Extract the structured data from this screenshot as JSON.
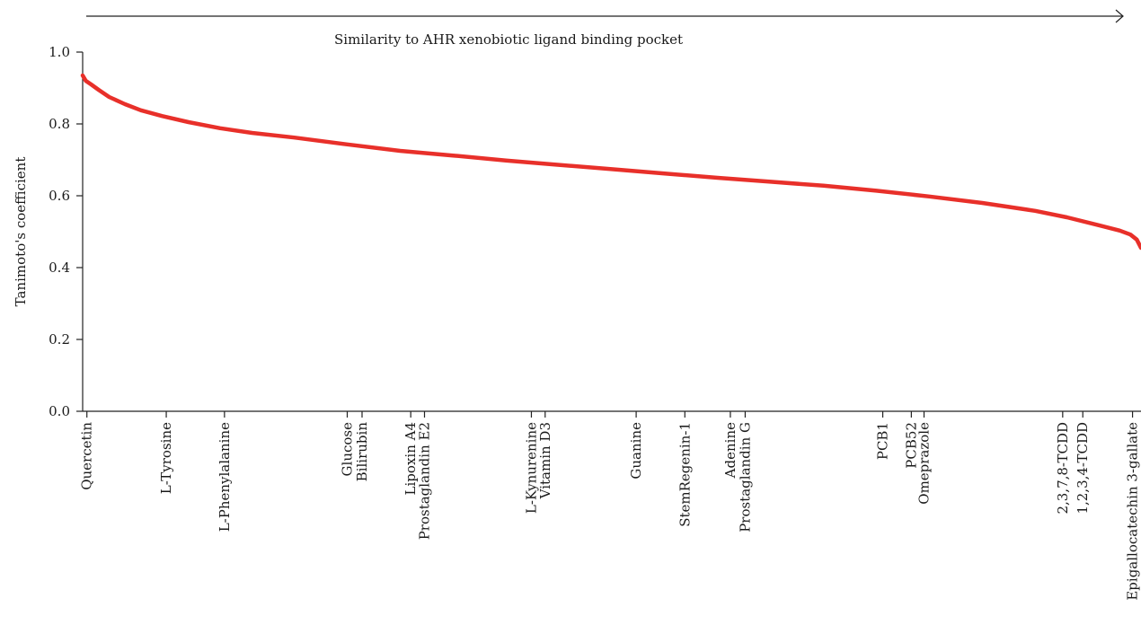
{
  "chart_data": {
    "type": "line",
    "title": "",
    "xlabel": "",
    "ylabel": "Tanimoto's coefficient",
    "ylim": [
      0.0,
      1.0
    ],
    "xlim": [
      0,
      1
    ],
    "yticks": [
      0.0,
      0.2,
      0.4,
      0.6,
      0.8,
      1.0
    ],
    "ytick_labels": [
      "0.0",
      "0.2",
      "0.4",
      "0.6",
      "0.8",
      "1.0"
    ],
    "grid": false,
    "legend": "none",
    "annotation": {
      "text": "Similarity to AHR xenobiotic ligand binding pocket",
      "arrow": "right"
    },
    "series": [
      {
        "color": "#e8302a",
        "x": [
          0.0,
          0.003,
          0.008,
          0.015,
          0.025,
          0.04,
          0.055,
          0.075,
          0.1,
          0.13,
          0.16,
          0.2,
          0.25,
          0.3,
          0.35,
          0.4,
          0.45,
          0.5,
          0.55,
          0.6,
          0.65,
          0.7,
          0.75,
          0.8,
          0.85,
          0.9,
          0.93,
          0.96,
          0.98,
          0.99,
          0.996,
          1.0
        ],
        "values": [
          0.935,
          0.92,
          0.91,
          0.895,
          0.875,
          0.855,
          0.838,
          0.822,
          0.805,
          0.788,
          0.775,
          0.762,
          0.743,
          0.725,
          0.712,
          0.698,
          0.686,
          0.674,
          0.662,
          0.65,
          0.639,
          0.628,
          0.614,
          0.598,
          0.58,
          0.558,
          0.54,
          0.518,
          0.503,
          0.492,
          0.478,
          0.455
        ]
      }
    ],
    "categories": [
      {
        "label": "Quercetin",
        "x": 0.004
      },
      {
        "label": "L-Tyrosine",
        "x": 0.079
      },
      {
        "label": "L-Phenylalanine",
        "x": 0.134
      },
      {
        "label": "Glucose",
        "x": 0.25
      },
      {
        "label": "Bilirubin",
        "x": 0.264
      },
      {
        "label": "Lipoxin A4",
        "x": 0.31
      },
      {
        "label": "Prostaglandin E2",
        "x": 0.323
      },
      {
        "label": "L-Kynurenine",
        "x": 0.424
      },
      {
        "label": "Vitamin D3",
        "x": 0.437
      },
      {
        "label": "Guanine",
        "x": 0.523
      },
      {
        "label": "StemRegenin-1",
        "x": 0.569
      },
      {
        "label": "Adenine",
        "x": 0.612
      },
      {
        "label": "Prostaglandin G",
        "x": 0.626
      },
      {
        "label": "PCB1",
        "x": 0.756
      },
      {
        "label": "PCB52",
        "x": 0.783
      },
      {
        "label": "Omeprazole",
        "x": 0.795
      },
      {
        "label": "2,3,7,8-TCDD",
        "x": 0.926
      },
      {
        "label": "1,2,3,4-TCDD",
        "x": 0.945
      },
      {
        "label": "Epigallocatechin 3-gallate",
        "x": 0.992
      }
    ]
  }
}
